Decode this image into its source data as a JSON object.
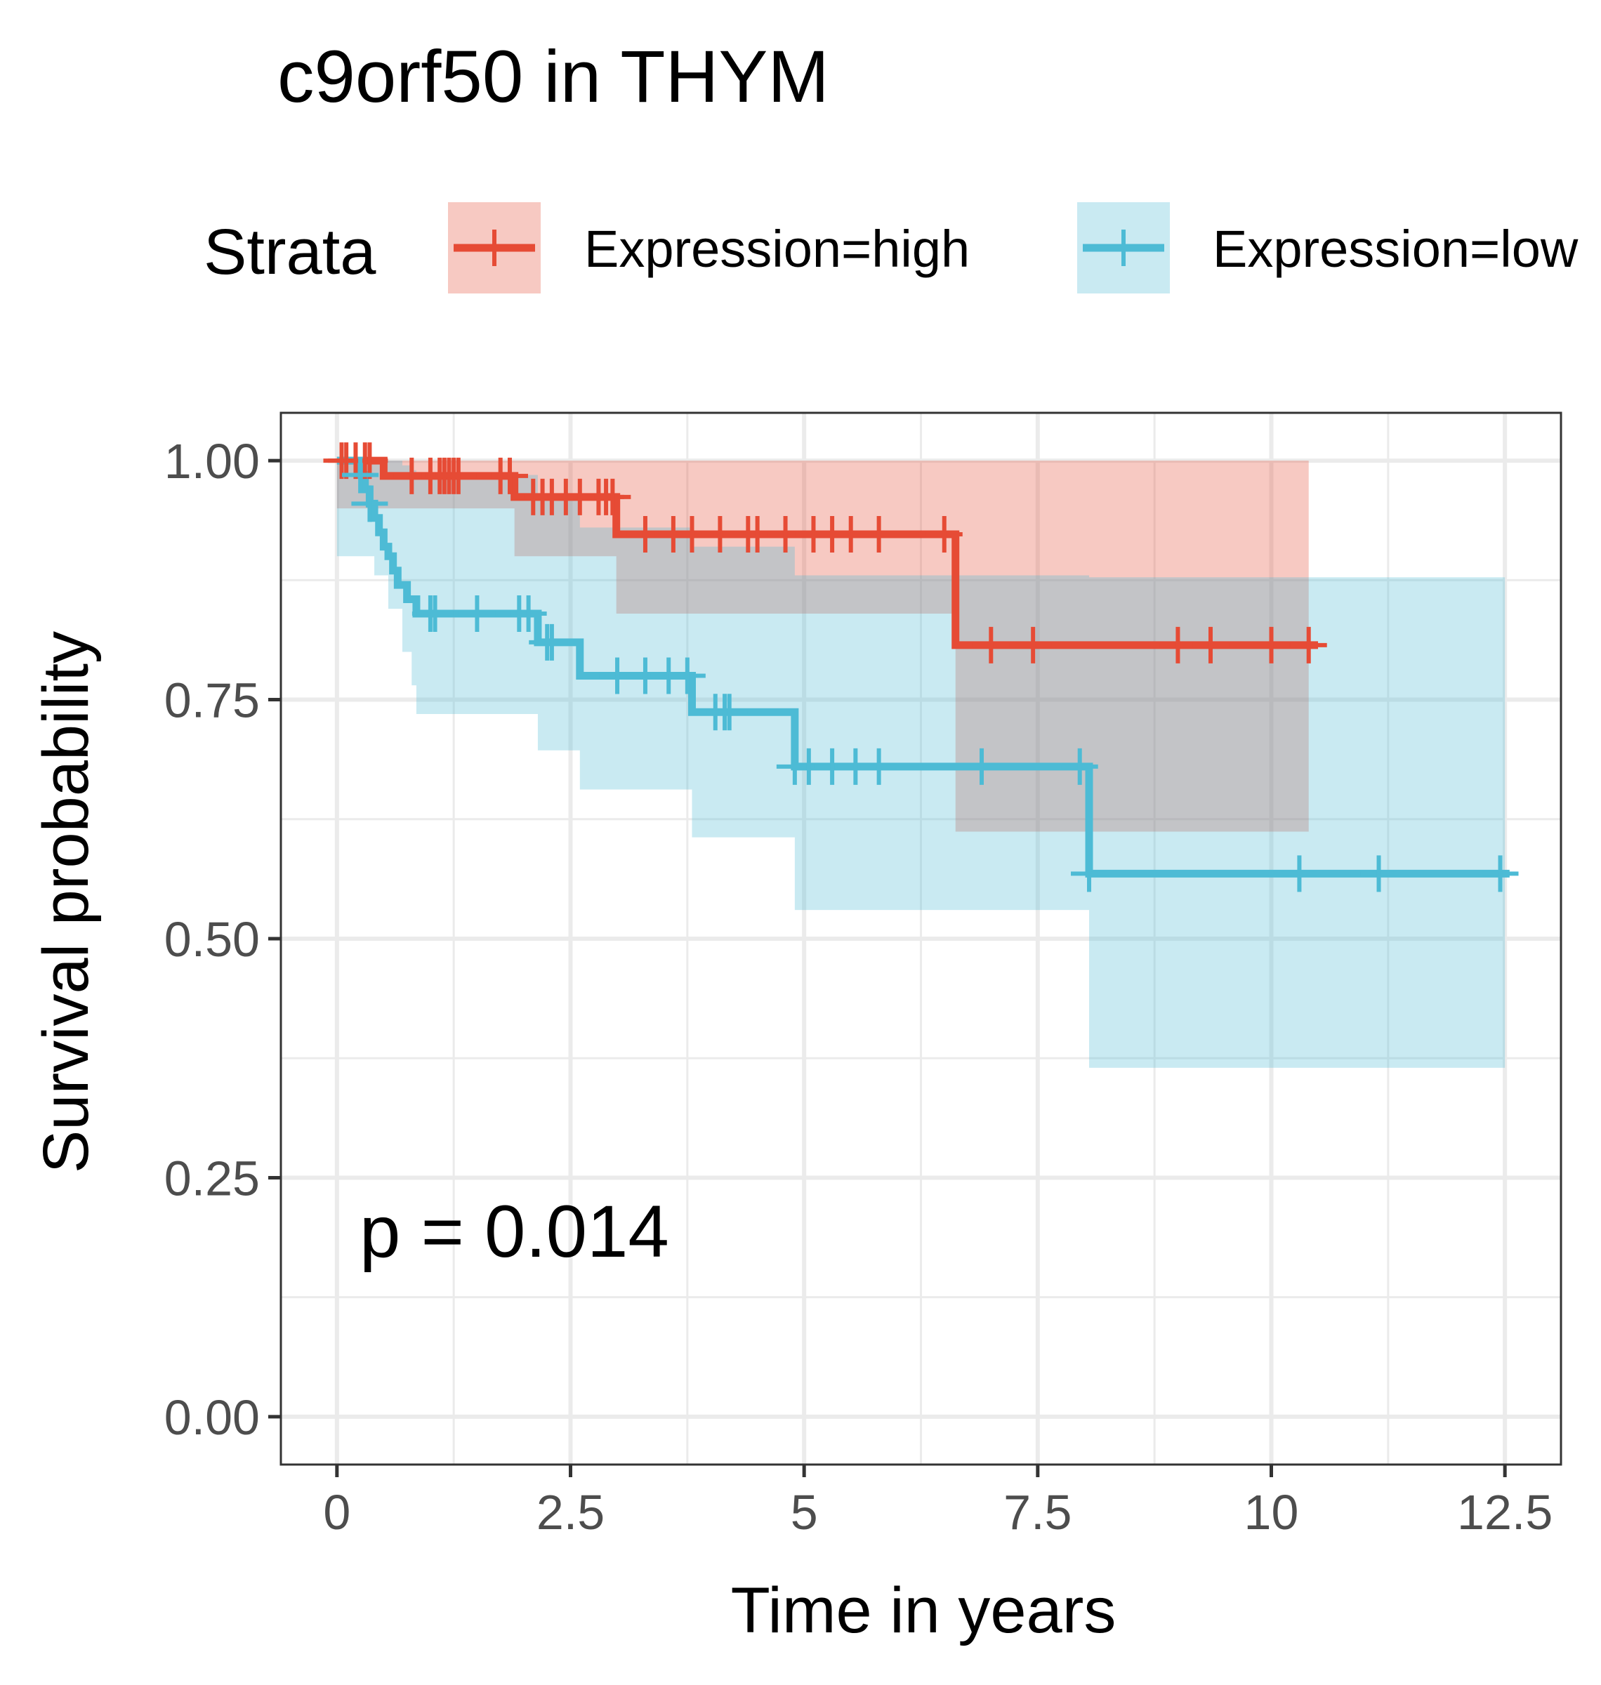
{
  "chart_data": {
    "type": "line",
    "subtype": "kaplan-meier",
    "title": "c9orf50 in THYM",
    "xlabel": "Time in years",
    "ylabel": "Survival probability",
    "xlim": [
      -0.6,
      13.1
    ],
    "ylim": [
      -0.05,
      1.05
    ],
    "x_ticks": [
      0,
      2.5,
      5,
      7.5,
      10,
      12.5
    ],
    "x_tick_labels": [
      "0",
      "2.5",
      "5",
      "7.5",
      "10",
      "12.5"
    ],
    "y_ticks": [
      0,
      0.25,
      0.5,
      0.75,
      1.0
    ],
    "y_tick_labels": [
      "0.00",
      "0.25",
      "0.50",
      "0.75",
      "1.00"
    ],
    "grid": true,
    "legend": {
      "title": "Strata",
      "position": "top"
    },
    "annotation": "p = 0.014",
    "series": [
      {
        "name": "Expression=high",
        "color": "#E64B35",
        "steps": [
          [
            0,
            1.0
          ],
          [
            0.5,
            0.984
          ],
          [
            1.9,
            0.962
          ],
          [
            2.99,
            0.923
          ],
          [
            6.62,
            0.807
          ],
          [
            10.5,
            0.807
          ]
        ],
        "ci_steps": [
          [
            0,
            0.95,
            1.0
          ],
          [
            0.5,
            0.95,
            1.0
          ],
          [
            1.9,
            0.9,
            1.0
          ],
          [
            2.99,
            0.84,
            1.0
          ],
          [
            4.9,
            0.84,
            1.0
          ],
          [
            6.62,
            0.612,
            1.0
          ],
          [
            10.4,
            0.612,
            1.0
          ]
        ],
        "censor_times": [
          0.05,
          0.1,
          0.2,
          0.3,
          0.35,
          0.8,
          1.0,
          1.1,
          1.15,
          1.2,
          1.25,
          1.3,
          1.75,
          1.85,
          2.1,
          2.2,
          2.3,
          2.45,
          2.6,
          2.8,
          2.88,
          2.95,
          3.3,
          3.6,
          3.8,
          4.1,
          4.4,
          4.5,
          4.8,
          5.1,
          5.3,
          5.5,
          5.8,
          6.5,
          7.0,
          7.45,
          9.0,
          9.35,
          10.0,
          10.4
        ]
      },
      {
        "name": "Expression=low",
        "color": "#4DBBD5",
        "steps": [
          [
            0,
            1.0
          ],
          [
            0.25,
            0.985
          ],
          [
            0.3,
            0.97
          ],
          [
            0.35,
            0.955
          ],
          [
            0.4,
            0.94
          ],
          [
            0.45,
            0.925
          ],
          [
            0.5,
            0.91
          ],
          [
            0.55,
            0.9
          ],
          [
            0.6,
            0.885
          ],
          [
            0.65,
            0.87
          ],
          [
            0.75,
            0.855
          ],
          [
            0.85,
            0.84
          ],
          [
            2.15,
            0.81
          ],
          [
            2.6,
            0.775
          ],
          [
            3.8,
            0.737
          ],
          [
            4.9,
            0.68
          ],
          [
            8.05,
            0.568
          ],
          [
            12.55,
            0.568
          ]
        ],
        "ci_steps": [
          [
            0,
            0.9,
            1.0
          ],
          [
            0.4,
            0.88,
            1.0
          ],
          [
            0.55,
            0.845,
            1.0
          ],
          [
            0.7,
            0.8,
            0.995
          ],
          [
            0.8,
            0.765,
            0.99
          ],
          [
            0.85,
            0.735,
            0.985
          ],
          [
            2.15,
            0.697,
            0.96
          ],
          [
            2.6,
            0.656,
            0.93
          ],
          [
            3.8,
            0.606,
            0.91
          ],
          [
            4.9,
            0.53,
            0.88
          ],
          [
            8.05,
            0.365,
            0.878
          ],
          [
            12.5,
            0.365,
            0.878
          ]
        ],
        "censor_times": [
          0.25,
          0.35,
          1.0,
          1.05,
          1.5,
          1.95,
          2.05,
          2.25,
          2.3,
          3.0,
          3.3,
          3.55,
          3.75,
          4.05,
          4.15,
          4.2,
          4.9,
          5.05,
          5.3,
          5.55,
          5.8,
          6.9,
          7.95,
          8.05,
          10.3,
          11.15,
          12.45
        ]
      }
    ]
  }
}
